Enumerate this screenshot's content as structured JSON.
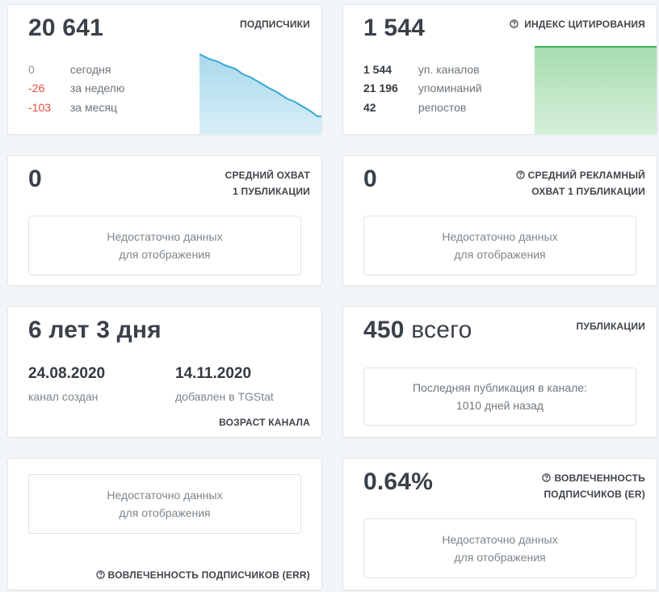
{
  "subscribers": {
    "value": "20 641",
    "label": "ПОДПИСЧИКИ",
    "rows": [
      {
        "value": "0",
        "text": "сегодня"
      },
      {
        "value": "-26",
        "text": "за неделю"
      },
      {
        "value": "-103",
        "text": "за месяц"
      }
    ],
    "chart_color": "#36a6d6"
  },
  "citation": {
    "value": "1 544",
    "label": "ИНДЕКС ЦИТИРОВАНИЯ",
    "help_icon": "question-circle-icon",
    "rows": [
      {
        "value": "1 544",
        "text": "уп. каналов"
      },
      {
        "value": "21 196",
        "text": "упоминаний"
      },
      {
        "value": "42",
        "text": "репостов"
      }
    ],
    "chart_color": "#3cb55a"
  },
  "avg_reach": {
    "value": "0",
    "label_line1": "СРЕДНИЙ ОХВАТ",
    "label_line2": "1 ПУБЛИКАЦИИ",
    "nodata_line1": "Недостаточно данных",
    "nodata_line2": "для отображения"
  },
  "avg_ad_reach": {
    "value": "0",
    "label_line1": "СРЕДНИЙ РЕКЛАМНЫЙ",
    "label_line2": "ОХВАТ 1 ПУБЛИКАЦИИ",
    "help_icon": "question-circle-icon",
    "nodata_line1": "Недостаточно данных",
    "nodata_line2": "для отображения"
  },
  "channel_age": {
    "value": "6 лет 3 дня",
    "created_date": "24.08.2020",
    "created_label": "канал создан",
    "added_date": "14.11.2020",
    "added_label": "добавлен в TGStat",
    "label": "ВОЗРАСТ КАНАЛА"
  },
  "publications": {
    "value": "450",
    "unit": "всего",
    "label": "ПУБЛИКАЦИИ",
    "last_line1": "Последняя публикация в канале:",
    "last_line2": "1010 дней назад"
  },
  "err": {
    "nodata_line1": "Недостаточно данных",
    "nodata_line2": "для отображения",
    "label": "ВОВЛЕЧЕННОСТЬ ПОДПИСЧИКОВ (ERR)",
    "help_icon": "question-circle-icon"
  },
  "er": {
    "value": "0.64%",
    "label_line1": "ВОВЛЕЧЕННОСТЬ",
    "label_line2": "ПОДПИСЧИКОВ (ER)",
    "help_icon": "question-circle-icon",
    "nodata_line1": "Недостаточно данных",
    "nodata_line2": "для отображения"
  }
}
